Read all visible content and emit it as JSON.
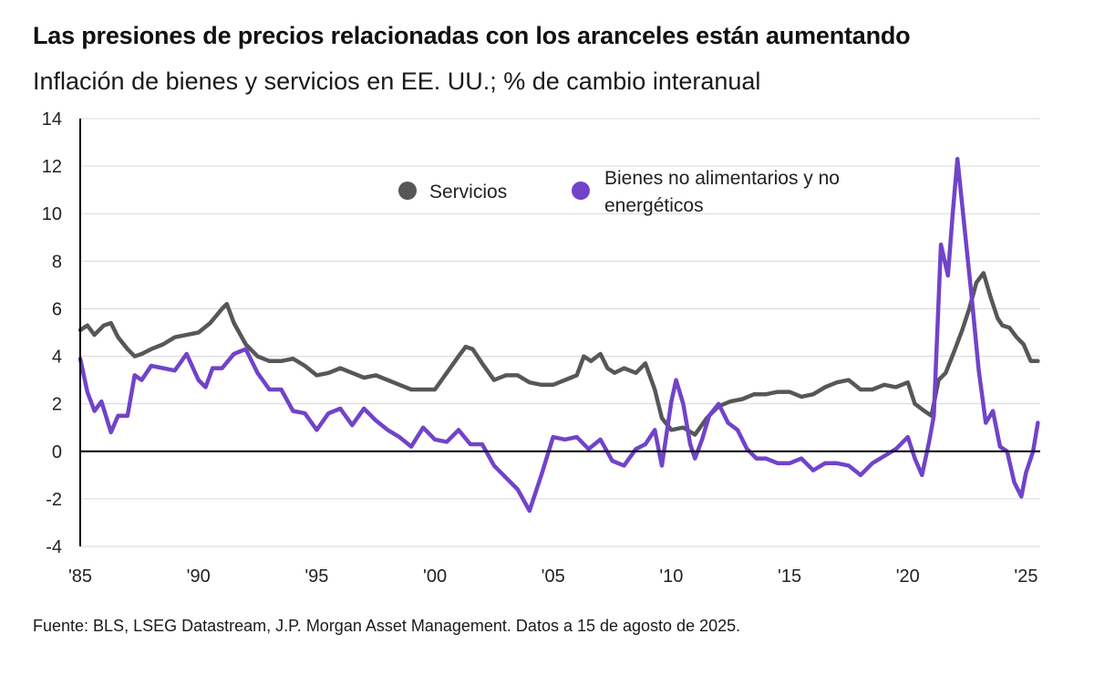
{
  "header": {
    "title": "Las presiones de precios relacionadas con los aranceles están aumentando",
    "subtitle": "Inflación de bienes y servicios en EE. UU.; % de cambio interanual"
  },
  "footer": {
    "source": "Fuente: BLS, LSEG Datastream, J.P. Morgan Asset Management. Datos a 15 de agosto de 2025."
  },
  "colors": {
    "services": "#555759",
    "goods": "#7143c9",
    "grid": "#d9d9d9",
    "axis": "#000000"
  },
  "chart_data": {
    "type": "line",
    "title": "Las presiones de precios relacionadas con los aranceles están aumentando",
    "subtitle": "Inflación de bienes y servicios en EE. UU.; % de cambio interanual",
    "ylim": [
      -4,
      14
    ],
    "yticks": [
      14,
      12,
      10,
      8,
      6,
      4,
      2,
      0,
      -2,
      -4
    ],
    "xlim": [
      1985,
      2025.6
    ],
    "xticks": [
      {
        "value": 1985,
        "label": "'85"
      },
      {
        "value": 1990,
        "label": "'90"
      },
      {
        "value": 1995,
        "label": "'95"
      },
      {
        "value": 2000,
        "label": "'00"
      },
      {
        "value": 2005,
        "label": "'05"
      },
      {
        "value": 2010,
        "label": "'10"
      },
      {
        "value": 2015,
        "label": "'15"
      },
      {
        "value": 2020,
        "label": "'20"
      },
      {
        "value": 2025,
        "label": "'25"
      }
    ],
    "grid": true,
    "legend_position": "top-center",
    "series": [
      {
        "name": "Servicios",
        "color": "#555759",
        "points": [
          [
            1985.0,
            5.1
          ],
          [
            1985.3,
            5.3
          ],
          [
            1985.6,
            4.9
          ],
          [
            1986.0,
            5.3
          ],
          [
            1986.3,
            5.4
          ],
          [
            1986.6,
            4.8
          ],
          [
            1987.0,
            4.3
          ],
          [
            1987.3,
            4.0
          ],
          [
            1987.6,
            4.1
          ],
          [
            1988.0,
            4.3
          ],
          [
            1988.5,
            4.5
          ],
          [
            1989.0,
            4.8
          ],
          [
            1989.5,
            4.9
          ],
          [
            1990.0,
            5.0
          ],
          [
            1990.5,
            5.4
          ],
          [
            1991.0,
            6.0
          ],
          [
            1991.2,
            6.2
          ],
          [
            1991.5,
            5.4
          ],
          [
            1992.0,
            4.5
          ],
          [
            1992.5,
            4.0
          ],
          [
            1993.0,
            3.8
          ],
          [
            1993.5,
            3.8
          ],
          [
            1994.0,
            3.9
          ],
          [
            1994.5,
            3.6
          ],
          [
            1995.0,
            3.2
          ],
          [
            1995.5,
            3.3
          ],
          [
            1996.0,
            3.5
          ],
          [
            1996.5,
            3.3
          ],
          [
            1997.0,
            3.1
          ],
          [
            1997.5,
            3.2
          ],
          [
            1998.0,
            3.0
          ],
          [
            1998.5,
            2.8
          ],
          [
            1999.0,
            2.6
          ],
          [
            1999.5,
            2.6
          ],
          [
            2000.0,
            2.6
          ],
          [
            2000.5,
            3.3
          ],
          [
            2001.0,
            4.0
          ],
          [
            2001.3,
            4.4
          ],
          [
            2001.6,
            4.3
          ],
          [
            2002.0,
            3.7
          ],
          [
            2002.5,
            3.0
          ],
          [
            2003.0,
            3.2
          ],
          [
            2003.5,
            3.2
          ],
          [
            2004.0,
            2.9
          ],
          [
            2004.5,
            2.8
          ],
          [
            2005.0,
            2.8
          ],
          [
            2005.5,
            3.0
          ],
          [
            2006.0,
            3.2
          ],
          [
            2006.3,
            4.0
          ],
          [
            2006.6,
            3.8
          ],
          [
            2007.0,
            4.1
          ],
          [
            2007.3,
            3.5
          ],
          [
            2007.6,
            3.3
          ],
          [
            2008.0,
            3.5
          ],
          [
            2008.5,
            3.3
          ],
          [
            2008.9,
            3.7
          ],
          [
            2009.3,
            2.6
          ],
          [
            2009.6,
            1.4
          ],
          [
            2010.0,
            0.9
          ],
          [
            2010.5,
            1.0
          ],
          [
            2011.0,
            0.7
          ],
          [
            2011.5,
            1.4
          ],
          [
            2012.0,
            1.9
          ],
          [
            2012.5,
            2.1
          ],
          [
            2013.0,
            2.2
          ],
          [
            2013.5,
            2.4
          ],
          [
            2014.0,
            2.4
          ],
          [
            2014.5,
            2.5
          ],
          [
            2015.0,
            2.5
          ],
          [
            2015.5,
            2.3
          ],
          [
            2016.0,
            2.4
          ],
          [
            2016.5,
            2.7
          ],
          [
            2017.0,
            2.9
          ],
          [
            2017.5,
            3.0
          ],
          [
            2018.0,
            2.6
          ],
          [
            2018.5,
            2.6
          ],
          [
            2019.0,
            2.8
          ],
          [
            2019.5,
            2.7
          ],
          [
            2020.0,
            2.9
          ],
          [
            2020.3,
            2.0
          ],
          [
            2020.7,
            1.7
          ],
          [
            2021.0,
            1.5
          ],
          [
            2021.3,
            3.0
          ],
          [
            2021.6,
            3.3
          ],
          [
            2022.0,
            4.3
          ],
          [
            2022.3,
            5.1
          ],
          [
            2022.6,
            6.0
          ],
          [
            2022.9,
            7.1
          ],
          [
            2023.2,
            7.5
          ],
          [
            2023.5,
            6.5
          ],
          [
            2023.8,
            5.6
          ],
          [
            2024.0,
            5.3
          ],
          [
            2024.3,
            5.2
          ],
          [
            2024.6,
            4.8
          ],
          [
            2024.9,
            4.5
          ],
          [
            2025.2,
            3.8
          ],
          [
            2025.5,
            3.8
          ]
        ]
      },
      {
        "name": "Bienes no alimentarios y no energéticos",
        "color": "#7143c9",
        "points": [
          [
            1985.0,
            3.9
          ],
          [
            1985.3,
            2.5
          ],
          [
            1985.6,
            1.7
          ],
          [
            1985.9,
            2.1
          ],
          [
            1986.3,
            0.8
          ],
          [
            1986.6,
            1.5
          ],
          [
            1987.0,
            1.5
          ],
          [
            1987.3,
            3.2
          ],
          [
            1987.6,
            3.0
          ],
          [
            1988.0,
            3.6
          ],
          [
            1988.5,
            3.5
          ],
          [
            1989.0,
            3.4
          ],
          [
            1989.5,
            4.1
          ],
          [
            1990.0,
            3.0
          ],
          [
            1990.3,
            2.7
          ],
          [
            1990.6,
            3.5
          ],
          [
            1991.0,
            3.5
          ],
          [
            1991.5,
            4.1
          ],
          [
            1992.0,
            4.3
          ],
          [
            1992.5,
            3.3
          ],
          [
            1993.0,
            2.6
          ],
          [
            1993.5,
            2.6
          ],
          [
            1994.0,
            1.7
          ],
          [
            1994.5,
            1.6
          ],
          [
            1995.0,
            0.9
          ],
          [
            1995.5,
            1.6
          ],
          [
            1996.0,
            1.8
          ],
          [
            1996.5,
            1.1
          ],
          [
            1997.0,
            1.8
          ],
          [
            1997.5,
            1.3
          ],
          [
            1998.0,
            0.9
          ],
          [
            1998.5,
            0.6
          ],
          [
            1999.0,
            0.2
          ],
          [
            1999.5,
            1.0
          ],
          [
            2000.0,
            0.5
          ],
          [
            2000.5,
            0.4
          ],
          [
            2001.0,
            0.9
          ],
          [
            2001.5,
            0.3
          ],
          [
            2002.0,
            0.3
          ],
          [
            2002.5,
            -0.6
          ],
          [
            2003.0,
            -1.1
          ],
          [
            2003.5,
            -1.6
          ],
          [
            2004.0,
            -2.5
          ],
          [
            2004.5,
            -1.0
          ],
          [
            2005.0,
            0.6
          ],
          [
            2005.5,
            0.5
          ],
          [
            2006.0,
            0.6
          ],
          [
            2006.5,
            0.1
          ],
          [
            2007.0,
            0.5
          ],
          [
            2007.5,
            -0.4
          ],
          [
            2008.0,
            -0.6
          ],
          [
            2008.5,
            0.1
          ],
          [
            2008.9,
            0.3
          ],
          [
            2009.3,
            0.9
          ],
          [
            2009.6,
            -0.6
          ],
          [
            2010.0,
            2.1
          ],
          [
            2010.2,
            3.0
          ],
          [
            2010.5,
            2.0
          ],
          [
            2010.8,
            0.3
          ],
          [
            2011.0,
            -0.3
          ],
          [
            2011.3,
            0.5
          ],
          [
            2011.6,
            1.5
          ],
          [
            2012.0,
            2.0
          ],
          [
            2012.4,
            1.2
          ],
          [
            2012.8,
            0.9
          ],
          [
            2013.2,
            0.1
          ],
          [
            2013.6,
            -0.3
          ],
          [
            2014.0,
            -0.3
          ],
          [
            2014.5,
            -0.5
          ],
          [
            2015.0,
            -0.5
          ],
          [
            2015.5,
            -0.3
          ],
          [
            2016.0,
            -0.8
          ],
          [
            2016.5,
            -0.5
          ],
          [
            2017.0,
            -0.5
          ],
          [
            2017.5,
            -0.6
          ],
          [
            2018.0,
            -1.0
          ],
          [
            2018.5,
            -0.5
          ],
          [
            2019.0,
            -0.2
          ],
          [
            2019.5,
            0.1
          ],
          [
            2020.0,
            0.6
          ],
          [
            2020.3,
            -0.3
          ],
          [
            2020.6,
            -1.0
          ],
          [
            2020.9,
            0.4
          ],
          [
            2021.1,
            1.5
          ],
          [
            2021.4,
            8.7
          ],
          [
            2021.7,
            7.4
          ],
          [
            2021.9,
            10.0
          ],
          [
            2022.1,
            12.3
          ],
          [
            2022.4,
            9.4
          ],
          [
            2022.7,
            6.5
          ],
          [
            2023.0,
            3.4
          ],
          [
            2023.3,
            1.2
          ],
          [
            2023.6,
            1.7
          ],
          [
            2023.9,
            0.2
          ],
          [
            2024.2,
            0.0
          ],
          [
            2024.5,
            -1.3
          ],
          [
            2024.8,
            -1.9
          ],
          [
            2025.0,
            -0.9
          ],
          [
            2025.3,
            0.0
          ],
          [
            2025.5,
            1.2
          ]
        ]
      }
    ]
  }
}
